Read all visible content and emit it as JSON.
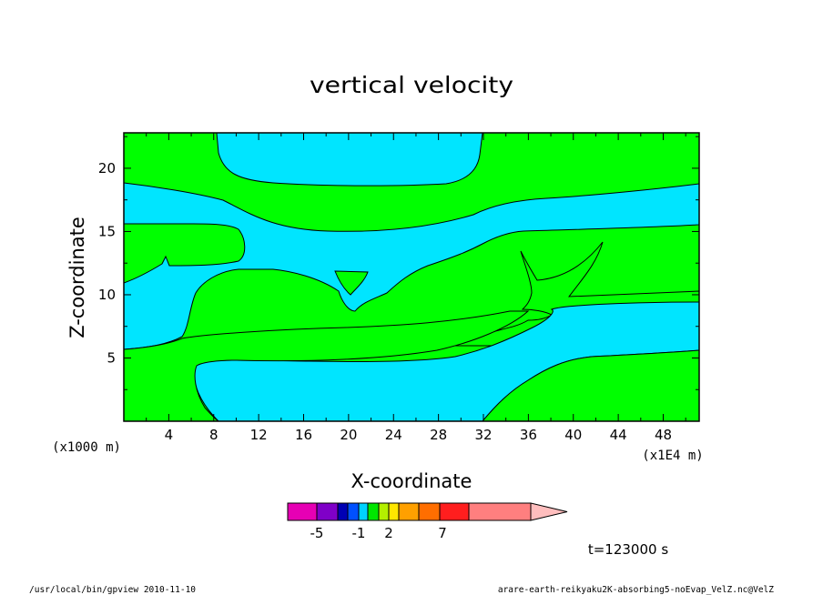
{
  "chart_data": {
    "type": "contour",
    "title": "vertical velocity",
    "xlabel": "X-coordinate",
    "ylabel": "Z-coordinate",
    "x_unit_label": "(x1E4 m)",
    "y_unit_label": "(x1000 m)",
    "xlim": [
      0,
      51.2
    ],
    "ylim": [
      0,
      22.8
    ],
    "x_ticks": [
      "4",
      "8",
      "12",
      "16",
      "20",
      "24",
      "28",
      "32",
      "36",
      "40",
      "44",
      "48"
    ],
    "y_ticks": [
      "5",
      "10",
      "15",
      "20"
    ],
    "fill_colors": {
      "positive": "#00ff00",
      "negative": "#00e5ff"
    },
    "colorbar": {
      "colors": [
        "#e600b4",
        "#7f00c8",
        "#0000b4",
        "#0050ff",
        "#00d2ff",
        "#00e600",
        "#b4f000",
        "#ffe600",
        "#ffa000",
        "#ff6e00",
        "#ff1e1e",
        "#ff7f7f",
        "#ffbebe"
      ],
      "labels": [
        "-5",
        "-1",
        "2",
        "7"
      ]
    },
    "time_label": "t=123000 s"
  },
  "footer": {
    "left": "/usr/local/bin/gpview  2010-11-10",
    "right": "arare-earth-reikyaku2K-absorbing5-noEvap_VelZ.nc@VelZ"
  }
}
